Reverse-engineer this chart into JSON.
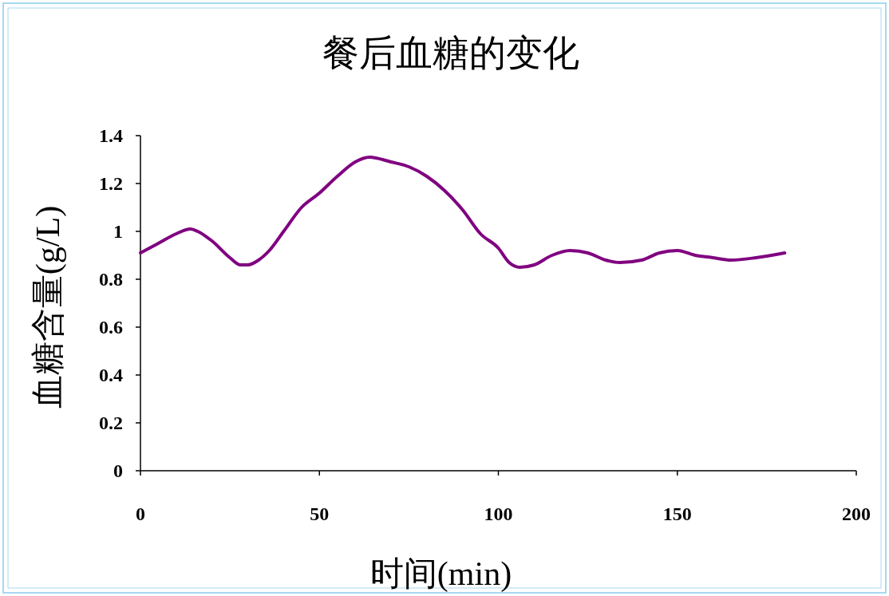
{
  "chart_data": {
    "type": "line",
    "title": "餐后血糖的变化",
    "xlabel": "时间(min)",
    "ylabel": "血糖含量(g/L)",
    "xlim": [
      0,
      200
    ],
    "xticks": [
      0,
      50,
      100,
      150,
      200
    ],
    "ylim": [
      0,
      1.4
    ],
    "yticks": [
      0,
      0.2,
      0.4,
      0.6,
      0.8,
      1,
      1.2,
      1.4
    ],
    "grid": false,
    "marker": "none",
    "line_style": "solid",
    "series": [
      {
        "color": "#800080",
        "x": [
          0,
          5,
          10,
          14,
          16,
          20,
          25,
          28,
          30,
          33,
          36,
          40,
          45,
          50,
          55,
          60,
          64,
          70,
          75,
          80,
          85,
          90,
          95,
          100,
          103,
          106,
          110,
          115,
          120,
          125,
          130,
          134,
          140,
          145,
          150,
          155,
          160,
          165,
          172,
          180
        ],
        "values": [
          0.91,
          0.95,
          0.99,
          1.01,
          1.0,
          0.96,
          0.89,
          0.86,
          0.86,
          0.88,
          0.92,
          1.0,
          1.1,
          1.16,
          1.23,
          1.29,
          1.31,
          1.29,
          1.27,
          1.23,
          1.17,
          1.09,
          0.99,
          0.93,
          0.87,
          0.85,
          0.86,
          0.9,
          0.92,
          0.91,
          0.88,
          0.87,
          0.88,
          0.91,
          0.92,
          0.9,
          0.89,
          0.88,
          0.89,
          0.91
        ]
      }
    ]
  }
}
